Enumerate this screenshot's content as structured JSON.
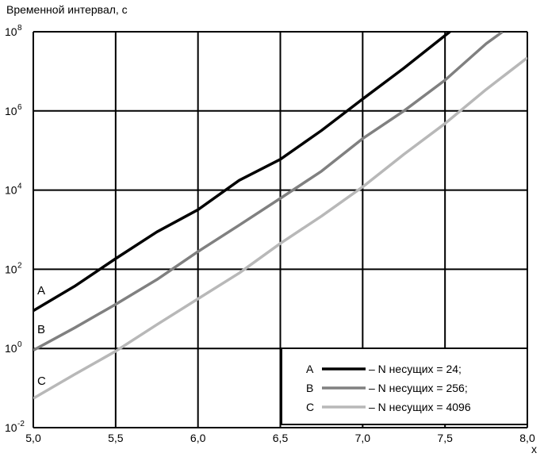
{
  "chart_data": {
    "type": "line",
    "title": "",
    "ylabel": "Временной интервал, с",
    "xlabel": "x",
    "yscale": "log",
    "xlim": [
      5.0,
      8.0
    ],
    "ylim_exponents": [
      -2,
      8
    ],
    "xticks": [
      5.0,
      5.5,
      6.0,
      6.5,
      7.0,
      7.5,
      8.0
    ],
    "xtick_labels": [
      "5,0",
      "5,5",
      "6,0",
      "6,5",
      "7,0",
      "7,5",
      "8,0"
    ],
    "ytick_base": "10",
    "ytick_exponents": [
      "-2",
      "0",
      "2",
      "4",
      "6",
      "8"
    ],
    "grid": true,
    "legend_position": "bottom-right",
    "series": [
      {
        "name": "A",
        "legend_text": "– N несущих = 24;",
        "color": "#000000",
        "x": [
          5.0,
          5.25,
          5.5,
          5.75,
          6.0,
          6.25,
          6.5,
          6.75,
          7.0,
          7.25,
          7.5,
          7.53
        ],
        "y": [
          9,
          37,
          186,
          880,
          3200,
          17600,
          60000,
          320000,
          2000000,
          12000000,
          80000000,
          100000000
        ]
      },
      {
        "name": "B",
        "legend_text": "– N несущих = 256;",
        "color": "#808080",
        "x": [
          5.0,
          5.25,
          5.5,
          5.75,
          6.0,
          6.25,
          6.5,
          6.75,
          7.0,
          7.25,
          7.5,
          7.75,
          7.85
        ],
        "y": [
          0.9,
          3.3,
          13,
          55,
          280,
          1300,
          6200,
          30000,
          200000,
          1000000,
          6000000,
          50000000,
          100000000
        ]
      },
      {
        "name": "C",
        "legend_text": "– N несущих = 4096",
        "color": "#b8b8b8",
        "x": [
          5.0,
          5.25,
          5.5,
          5.75,
          6.0,
          6.25,
          6.5,
          6.75,
          7.0,
          7.25,
          7.5,
          7.75,
          8.0
        ],
        "y": [
          0.055,
          0.22,
          0.85,
          4,
          18,
          80,
          450,
          2200,
          12000,
          80000,
          480000,
          3500000,
          22000000
        ]
      }
    ]
  }
}
